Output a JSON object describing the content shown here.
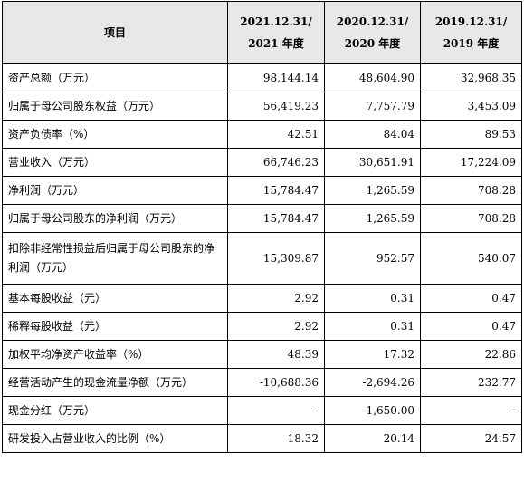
{
  "header": {
    "item_label": "项目",
    "columns": [
      {
        "line1": "2021.12.31/",
        "line2": "2021 年度"
      },
      {
        "line1": "2020.12.31/",
        "line2": "2020 年度"
      },
      {
        "line1": "2019.12.31/",
        "line2": "2019 年度"
      }
    ]
  },
  "rows": [
    {
      "label": "资产总额（万元）",
      "values": [
        "98,144.14",
        "48,604.90",
        "32,968.35"
      ]
    },
    {
      "label": "归属于母公司股东权益（万元）",
      "values": [
        "56,419.23",
        "7,757.79",
        "3,453.09"
      ]
    },
    {
      "label": "资产负债率（%）",
      "values": [
        "42.51",
        "84.04",
        "89.53"
      ]
    },
    {
      "label": "营业收入（万元）",
      "values": [
        "66,746.23",
        "30,651.91",
        "17,224.09"
      ]
    },
    {
      "label": "净利润（万元）",
      "values": [
        "15,784.47",
        "1,265.59",
        "708.28"
      ]
    },
    {
      "label": "归属于母公司股东的净利润（万元）",
      "values": [
        "15,784.47",
        "1,265.59",
        "708.28"
      ]
    },
    {
      "label": "扣除非经常性损益后归属于母公司股东的净利润（万元）",
      "values": [
        "15,309.87",
        "952.57",
        "540.07"
      ]
    },
    {
      "label": "基本每股收益（元）",
      "values": [
        "2.92",
        "0.31",
        "0.47"
      ]
    },
    {
      "label": "稀释每股收益（元）",
      "values": [
        "2.92",
        "0.31",
        "0.47"
      ]
    },
    {
      "label": "加权平均净资产收益率（%）",
      "values": [
        "48.39",
        "17.32",
        "22.86"
      ]
    },
    {
      "label": "经营活动产生的现金流量净额（万元）",
      "values": [
        "-10,688.36",
        "-2,694.26",
        "232.77"
      ]
    },
    {
      "label": "现金分红（万元）",
      "values": [
        "-",
        "1,650.00",
        "-"
      ]
    },
    {
      "label": "研发投入占营业收入的比例（%）",
      "values": [
        "18.32",
        "20.14",
        "24.57"
      ]
    }
  ]
}
